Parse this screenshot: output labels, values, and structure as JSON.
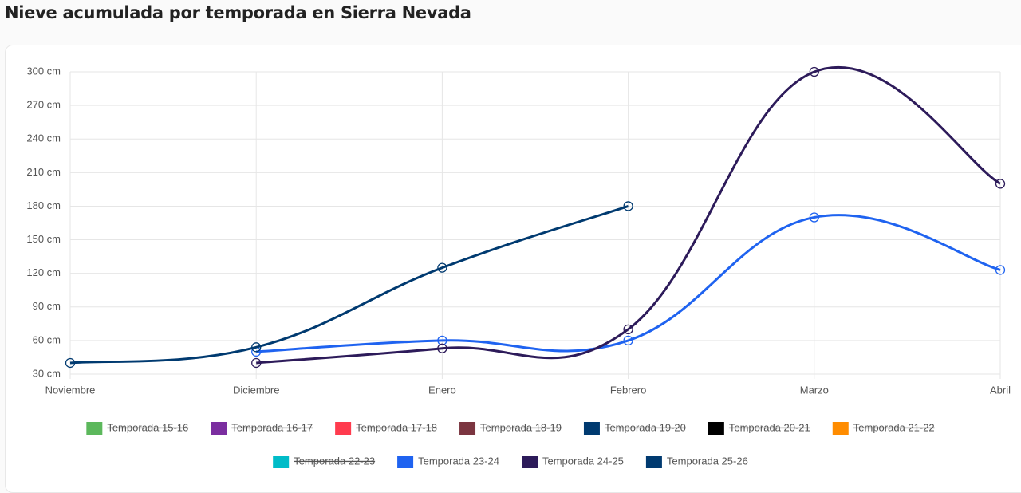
{
  "chart_data": {
    "type": "line",
    "title": "Nieve acumulada por temporada en Sierra Nevada",
    "categories": [
      "Noviembre",
      "Diciembre",
      "Enero",
      "Febrero",
      "Marzo",
      "Abril"
    ],
    "ylim": [
      30,
      300
    ],
    "yticks": [
      {
        "value": 30,
        "label": "30 cm"
      },
      {
        "value": 60,
        "label": "60 cm"
      },
      {
        "value": 90,
        "label": "90 cm"
      },
      {
        "value": 120,
        "label": "120 cm"
      },
      {
        "value": 150,
        "label": "150 cm"
      },
      {
        "value": 180,
        "label": "180 cm"
      },
      {
        "value": 210,
        "label": "210 cm"
      },
      {
        "value": 240,
        "label": "240 cm"
      },
      {
        "value": 270,
        "label": "270 cm"
      },
      {
        "value": 300,
        "label": "300 cm"
      }
    ],
    "grid": true,
    "legend": "bottom",
    "series": [
      {
        "name": "Temporada 15-16",
        "color": "#5cb85c",
        "hidden": true,
        "values": [
          null,
          null,
          null,
          null,
          null,
          null
        ]
      },
      {
        "name": "Temporada 16-17",
        "color": "#7b2ea0",
        "hidden": true,
        "values": [
          null,
          null,
          null,
          null,
          null,
          null
        ]
      },
      {
        "name": "Temporada 17-18",
        "color": "#ff3b4e",
        "hidden": true,
        "values": [
          null,
          null,
          null,
          null,
          null,
          null
        ]
      },
      {
        "name": "Temporada 18-19",
        "color": "#7b3540",
        "hidden": true,
        "values": [
          null,
          null,
          null,
          null,
          null,
          null
        ]
      },
      {
        "name": "Temporada 19-20",
        "color": "#003a70",
        "hidden": true,
        "values": [
          null,
          null,
          null,
          null,
          null,
          null
        ]
      },
      {
        "name": "Temporada 20-21",
        "color": "#000000",
        "hidden": true,
        "values": [
          null,
          null,
          null,
          null,
          null,
          null
        ]
      },
      {
        "name": "Temporada 21-22",
        "color": "#ff8c00",
        "hidden": true,
        "values": [
          null,
          null,
          null,
          null,
          null,
          null
        ]
      },
      {
        "name": "Temporada 22-23",
        "color": "#00bcc8",
        "hidden": true,
        "values": [
          null,
          null,
          null,
          null,
          null,
          null
        ]
      },
      {
        "name": "Temporada 23-24",
        "color": "#1f63f0",
        "hidden": false,
        "values": [
          null,
          50,
          60,
          60,
          170,
          123
        ]
      },
      {
        "name": "Temporada 24-25",
        "color": "#2d1b5a",
        "hidden": false,
        "values": [
          null,
          40,
          53,
          70,
          300,
          200
        ]
      },
      {
        "name": "Temporada 25-26",
        "color": "#003a70",
        "hidden": false,
        "values": [
          40,
          54,
          125,
          180,
          null,
          null
        ]
      }
    ]
  }
}
